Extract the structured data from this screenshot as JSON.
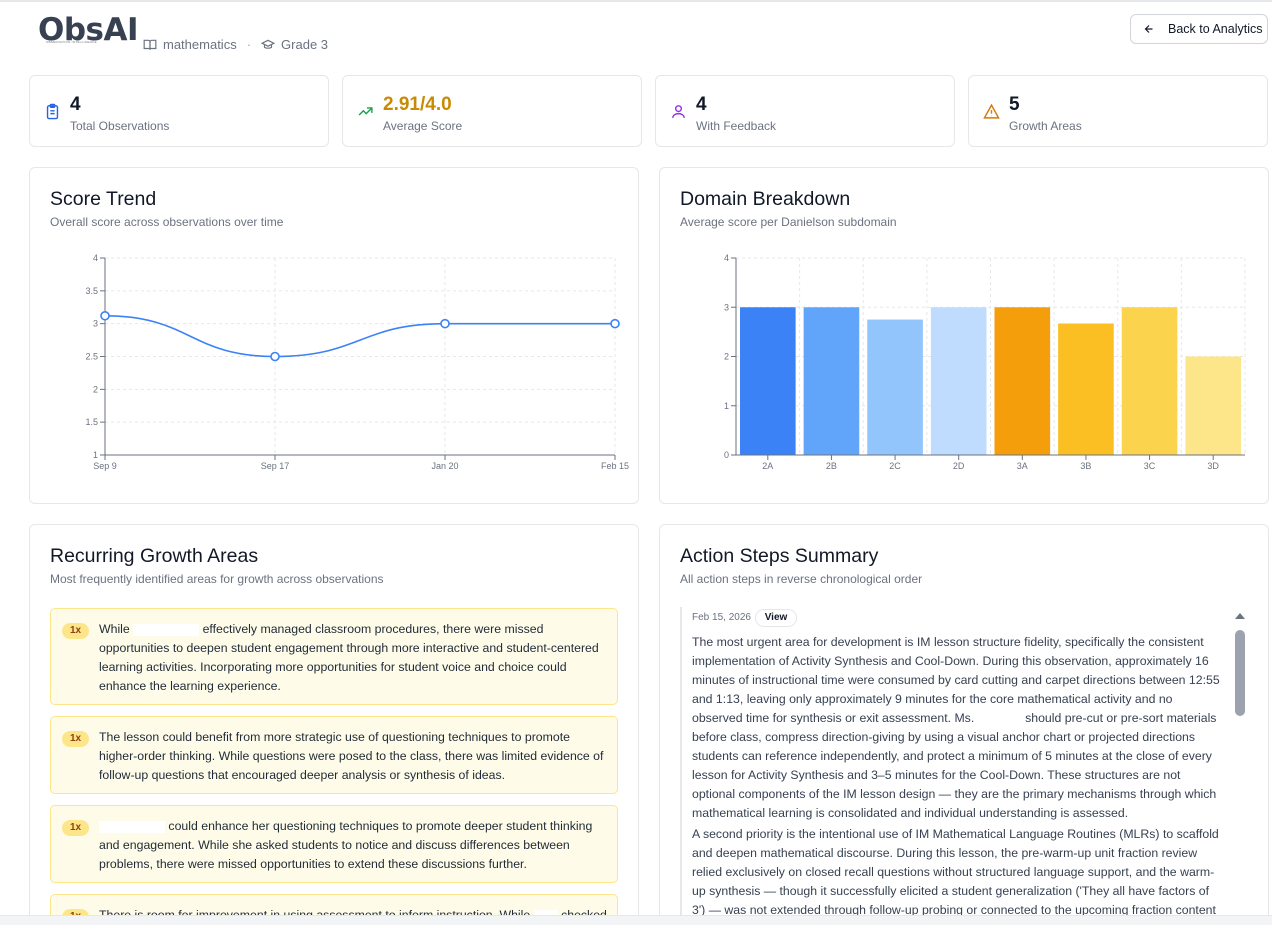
{
  "header": {
    "logo": "ObsAI",
    "logo_tagline": "OBSERVATION INTELLIGENCE",
    "subject": "mathematics",
    "grade": "Grade 3",
    "back_label": "Back to Analytics"
  },
  "stats": [
    {
      "value": "4",
      "label": "Total Observations",
      "icon": "clipboard-icon",
      "color": "#2563eb"
    },
    {
      "value": "2.91/4.0",
      "label": "Average Score",
      "icon": "trending-up-icon",
      "color": "#16a34a",
      "value_color": "#ca8a04"
    },
    {
      "value": "4",
      "label": "With Feedback",
      "icon": "user-icon",
      "color": "#9333ea"
    },
    {
      "value": "5",
      "label": "Growth Areas",
      "icon": "warning-icon",
      "color": "#d97706"
    }
  ],
  "score_trend": {
    "title": "Score Trend",
    "subtitle": "Overall score across observations over time"
  },
  "domain_breakdown": {
    "title": "Domain Breakdown",
    "subtitle": "Average score per Danielson subdomain"
  },
  "chart_data": [
    {
      "type": "line",
      "x": [
        "Sep 9",
        "Sep 17",
        "Jan 20",
        "Feb 15"
      ],
      "values": [
        3.12,
        2.5,
        3.0,
        3.0
      ],
      "ylim": [
        1,
        4
      ],
      "yticks": [
        "1",
        "1.5",
        "2",
        "2.5",
        "3",
        "3.5",
        "4"
      ],
      "grid": true,
      "color": "#3b82f6"
    },
    {
      "type": "bar",
      "categories": [
        "2A",
        "2B",
        "2C",
        "2D",
        "3A",
        "3B",
        "3C",
        "3D"
      ],
      "values": [
        3,
        3,
        2.75,
        3,
        3,
        2.67,
        3,
        2
      ],
      "colors": [
        "#3b82f6",
        "#60a5fa",
        "#93c5fd",
        "#bfdbfe",
        "#f59e0b",
        "#fbbf24",
        "#fcd34d",
        "#fde68a"
      ],
      "ylim": [
        0,
        4
      ],
      "yticks": [
        "0",
        "1",
        "2",
        "3",
        "4"
      ],
      "grid": true
    }
  ],
  "growth": {
    "title": "Recurring Growth Areas",
    "subtitle": "Most frequently identified areas for growth across observations",
    "items": [
      {
        "badge": "1x",
        "pre": "While",
        "post": "effectively managed classroom procedures, there were missed opportunities to deepen student engagement through more interactive and student-centered learning activities. Incorporating more opportunities for student voice and choice could enhance the learning experience."
      },
      {
        "badge": "1x",
        "pre": "",
        "post": "The lesson could benefit from more strategic use of questioning techniques to promote higher-order thinking. While questions were posed to the class, there was limited evidence of follow-up questions that encouraged deeper analysis or synthesis of ideas."
      },
      {
        "badge": "1x",
        "pre": "",
        "post": "could enhance her questioning techniques to promote deeper student thinking and engagement. While she asked students to notice and discuss differences between problems, there were missed opportunities to extend these discussions further."
      },
      {
        "badge": "1x",
        "pre": "There is room for improvement in using assessment to inform instruction. While",
        "post": "checked for"
      }
    ]
  },
  "actions": {
    "title": "Action Steps Summary",
    "subtitle": "All action steps in reverse chronological order",
    "date": "Feb 15, 2026",
    "view_label": "View",
    "p1_pre": "The most urgent area for development is IM lesson structure fidelity, specifically the consistent implementation of Activity Synthesis and Cool-Down. During this observation, approximately 16 minutes of instructional time were consumed by card cutting and carpet directions between 12:55 and 1:13, leaving only approximately 9 minutes for the core mathematical activity and no observed time for synthesis or exit assessment. Ms.",
    "p1_post": "should pre-cut or pre-sort materials before class, compress direction-giving by using a visual anchor chart or projected directions students can reference independently, and protect a minimum of 5 minutes at the close of every lesson for Activity Synthesis and 3–5 minutes for the Cool-Down. These structures are not optional components of the IM lesson design — they are the primary mechanisms through which mathematical learning is consolidated and individual understanding is assessed.",
    "p2": "A second priority is the intentional use of IM Mathematical Language Routines (MLRs) to scaffold and deepen mathematical discourse. During this lesson, the pre-warm-up unit fraction review relied exclusively on closed recall questions without structured language support, and the warm-up synthesis — though it successfully elicited a student generalization ('They all have factors of 3') — was not extended through follow-up probing or connected to the upcoming fraction content before the"
  }
}
